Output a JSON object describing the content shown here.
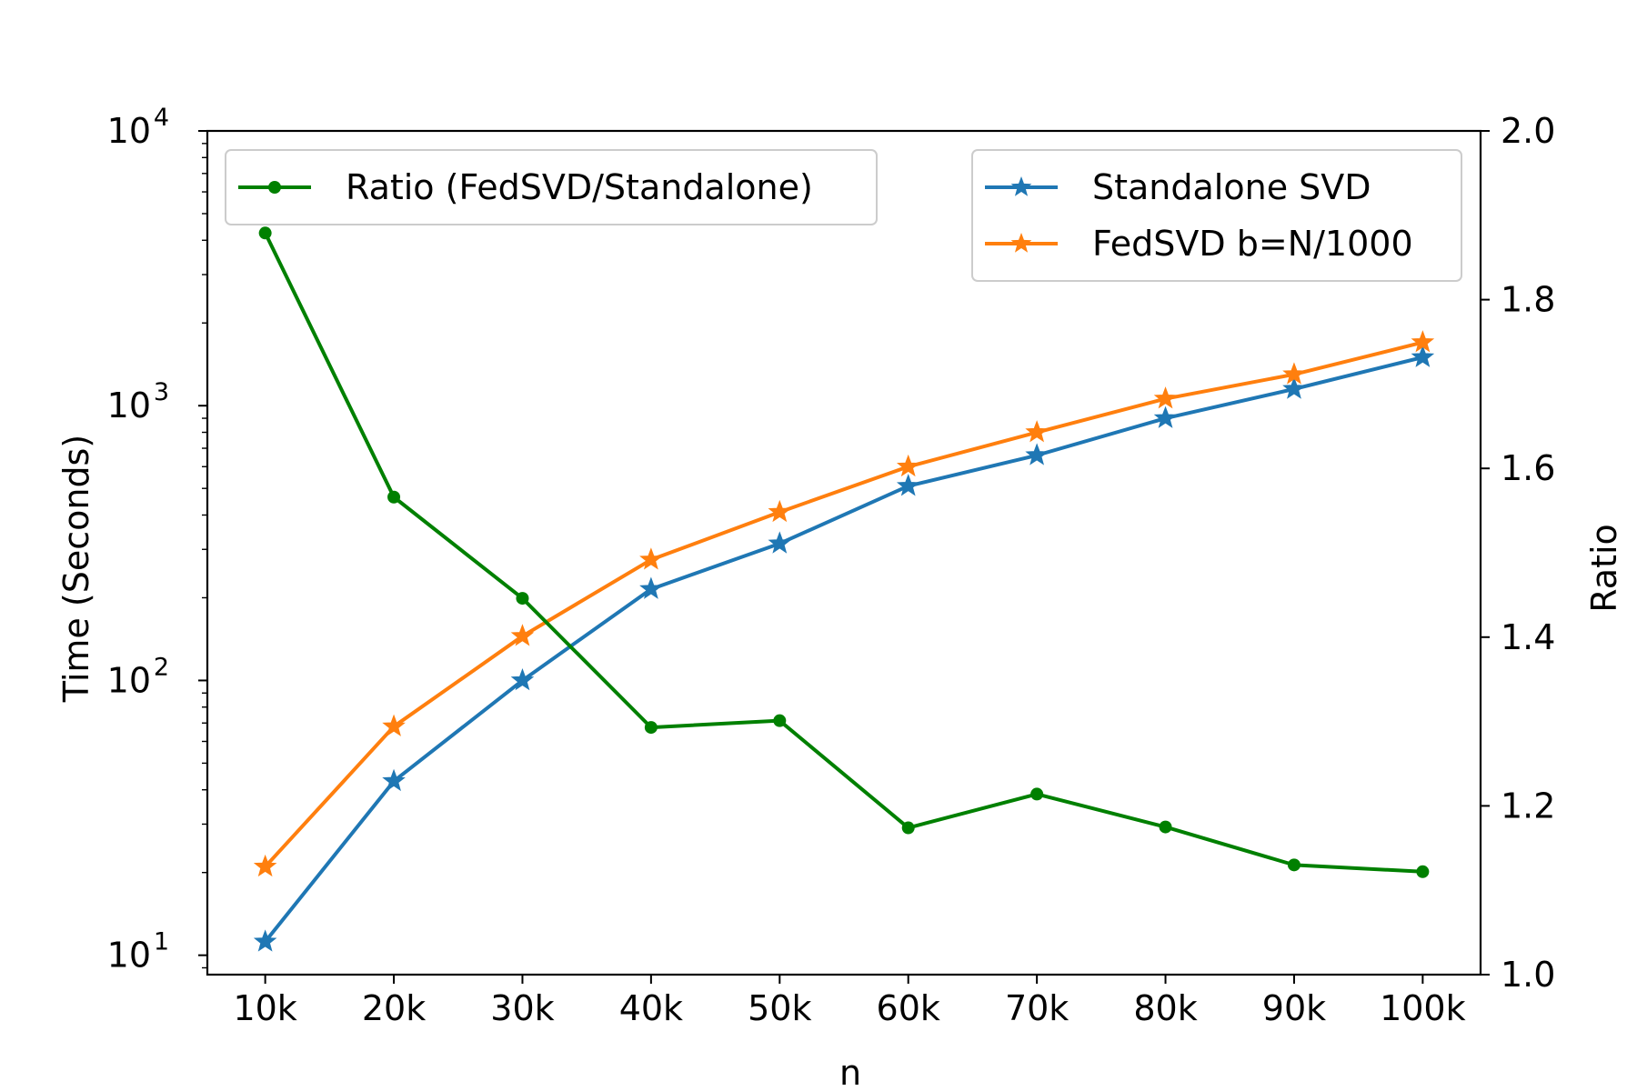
{
  "chart_data": {
    "type": "line",
    "xlabel": "n",
    "ylabel_left": "Time (Seconds)",
    "ylabel_right": "Ratio",
    "categories": [
      "10k",
      "20k",
      "30k",
      "40k",
      "50k",
      "60k",
      "70k",
      "80k",
      "90k",
      "100k"
    ],
    "x": [
      10000,
      20000,
      30000,
      40000,
      50000,
      60000,
      70000,
      80000,
      90000,
      100000
    ],
    "left_axis": {
      "scale": "log",
      "ylim": [
        8.5,
        10000
      ],
      "ticks": [
        10,
        100,
        1000,
        10000
      ],
      "tick_labels": [
        {
          "base": "10",
          "exp": "1"
        },
        {
          "base": "10",
          "exp": "2"
        },
        {
          "base": "10",
          "exp": "3"
        },
        {
          "base": "10",
          "exp": "4"
        }
      ]
    },
    "right_axis": {
      "scale": "linear",
      "ylim": [
        1.0,
        2.0
      ],
      "ticks": [
        1.0,
        1.2,
        1.4,
        1.6,
        1.8,
        2.0
      ],
      "tick_labels": [
        "1.0",
        "1.2",
        "1.4",
        "1.6",
        "1.8",
        "2.0"
      ]
    },
    "series": [
      {
        "name": "Standalone SVD",
        "axis": "left",
        "color": "#1f77b4",
        "marker": "star",
        "values": [
          11.2,
          43,
          100,
          215,
          315,
          510,
          660,
          900,
          1150,
          1500
        ]
      },
      {
        "name": "FedSVD b=N/1000",
        "axis": "left",
        "color": "#ff7f0e",
        "marker": "star",
        "values": [
          21,
          68,
          145,
          275,
          410,
          600,
          800,
          1060,
          1300,
          1700
        ]
      },
      {
        "name": "Ratio (FedSVD/Standalone)",
        "axis": "right",
        "color": "#008000",
        "marker": "circle",
        "values": [
          1.879,
          1.566,
          1.446,
          1.293,
          1.301,
          1.174,
          1.214,
          1.175,
          1.13,
          1.122
        ]
      }
    ],
    "legend_left": {
      "placement": "upper-left",
      "entries": [
        "Ratio (FedSVD/Standalone)"
      ]
    },
    "legend_right": {
      "placement": "upper-right",
      "entries": [
        "Standalone SVD",
        "FedSVD b=N/1000"
      ]
    },
    "grid": false
  }
}
